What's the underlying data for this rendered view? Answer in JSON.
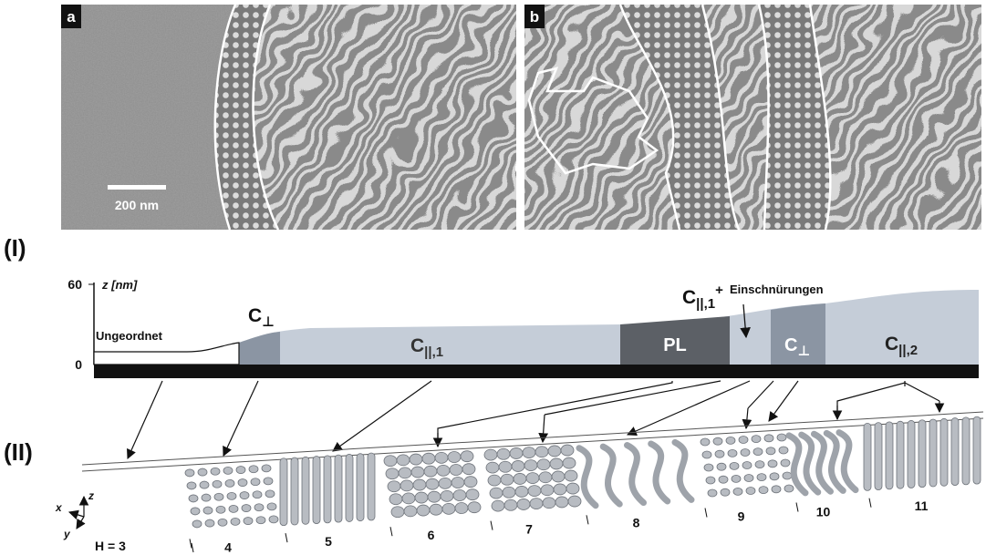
{
  "panels": [
    {
      "label": "a",
      "scale_bar": "200 nm"
    },
    {
      "label": "b"
    }
  ],
  "part_labels": [
    "(I)",
    "(II)"
  ],
  "profile": {
    "axis_label": "z [nm]",
    "ticks": [
      "60",
      "0"
    ],
    "regions": [
      {
        "text": "Ungeordnet"
      },
      {
        "main": "C",
        "sub": "⊥"
      },
      {
        "main": "C",
        "sub": "||,1"
      },
      {
        "text": "PL"
      },
      {
        "main": "C",
        "sub": "⊥"
      },
      {
        "main": "C",
        "sub": "||,2"
      }
    ],
    "annotation": {
      "main": "C",
      "sub": "||,1",
      "sup": "+",
      "text": "Einschnürungen"
    }
  },
  "simulation": {
    "axes": [
      "x",
      "y",
      "z"
    ],
    "h_label": "H = 3",
    "layers": [
      "4",
      "5",
      "6",
      "7",
      "8",
      "9",
      "10",
      "11"
    ]
  }
}
